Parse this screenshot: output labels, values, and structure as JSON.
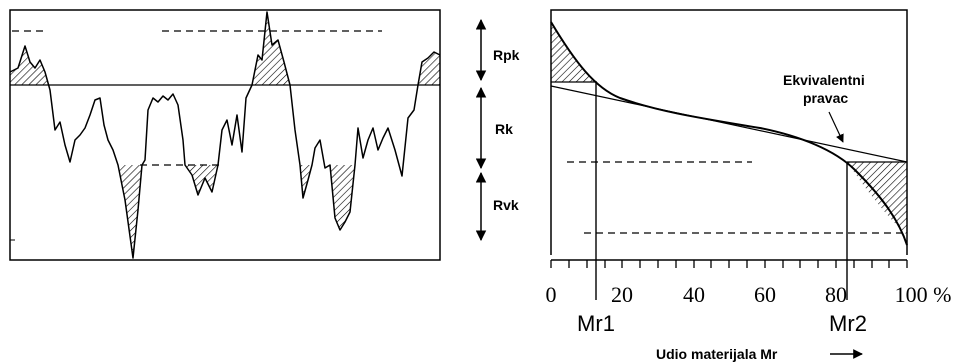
{
  "bands": {
    "rpk": "Rpk",
    "rk": "Rk",
    "rvk": "Rvk"
  },
  "abbott_curve": {
    "callout_line1": "Ekvivalentni",
    "callout_line2": "pravac",
    "axis_ticks": [
      "0",
      "20",
      "40",
      "60",
      "80",
      "100 %"
    ],
    "marker_mr1": "Mr1",
    "marker_mr2": "Mr2",
    "axis_title": "Udio materijala Mr",
    "mr1_value": 12,
    "mr2_value": 83
  },
  "colors": {
    "stroke": "#000000",
    "background": "#ffffff"
  }
}
